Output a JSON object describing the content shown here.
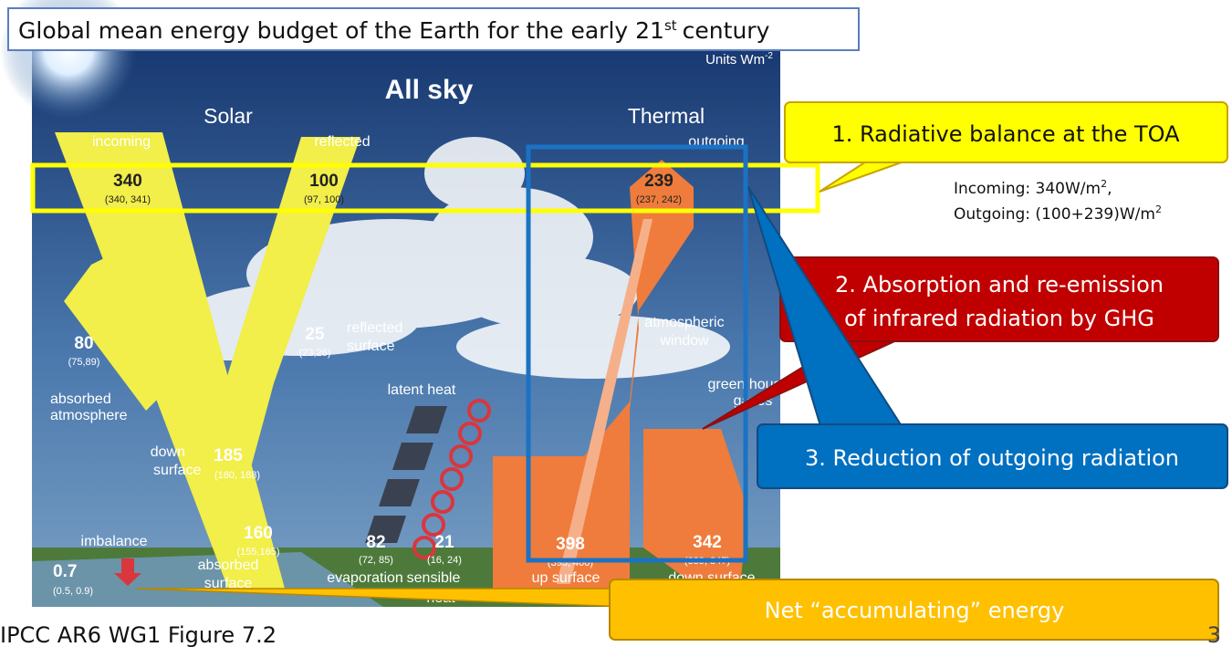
{
  "header": {
    "title": "Global mean energy budget of the Earth for the early 21",
    "title_sup": "st",
    "title_end": "century"
  },
  "figure": {
    "units": "Units Wm",
    "units_sup": "-2",
    "title": "All sky",
    "solar": "Solar",
    "thermal": "Thermal",
    "incoming": {
      "label": "incoming",
      "value": "340",
      "range": "(340, 341)"
    },
    "reflected": {
      "label": "reflected",
      "value": "100",
      "range": "(97, 100)"
    },
    "outgoing": {
      "label": "outgoing",
      "value": "239",
      "range": "(237, 242)"
    },
    "absorbed_atmosphere": {
      "value": "80",
      "range": "(75,89)",
      "label": [
        "absorbed",
        "atmosphere"
      ]
    },
    "reflected_surface": {
      "value": "25",
      "range": "(23,26)",
      "label": [
        "reflected",
        "surface"
      ]
    },
    "atmospheric_window": [
      "atmospheric",
      "window"
    ],
    "greenhouse_gases": [
      "green house",
      "gases"
    ],
    "latent_heat": "latent heat",
    "down_surface_solar": {
      "label": [
        "down",
        "surface"
      ],
      "value": "185",
      "range": "(180, 188)"
    },
    "absorbed_surface": {
      "value": "160",
      "range": "(155,165)",
      "label": [
        "absorbed",
        "surface"
      ]
    },
    "imbalance": {
      "label": "imbalance",
      "value": "0.7",
      "range": "(0.5, 0.9)"
    },
    "evaporation": {
      "value": "82",
      "range": "(72, 85)",
      "label": "evaporation"
    },
    "sensible_heat": {
      "value": "21",
      "range": "(16, 24)",
      "label": [
        "sensible",
        "heat"
      ]
    },
    "up_surface": {
      "value": "398",
      "range": "(395, 400)",
      "label": "up surface"
    },
    "down_surface_thermal": {
      "value": "342",
      "range": "(339, 347)",
      "label": "down surface"
    }
  },
  "callouts": [
    {
      "lines": [
        "1. Radiative balance at the TOA"
      ]
    },
    {
      "lines": [
        "2. Absorption and re-emission",
        "of infrared radiation by GHG"
      ]
    },
    {
      "lines": [
        "3. Reduction of outgoing radiation"
      ]
    },
    {
      "lines": [
        "Net “accumulating” energy"
      ]
    }
  ],
  "notes": {
    "incoming": "Incoming: 340W/m",
    "incoming_sup": "2",
    "incoming_end": ",",
    "outgoing": "Outgoing: (100+239)W/m",
    "outgoing_sup": "2"
  },
  "footer": {
    "source": "IPCC AR6 WG1 Figure 7.2",
    "page": "3"
  }
}
